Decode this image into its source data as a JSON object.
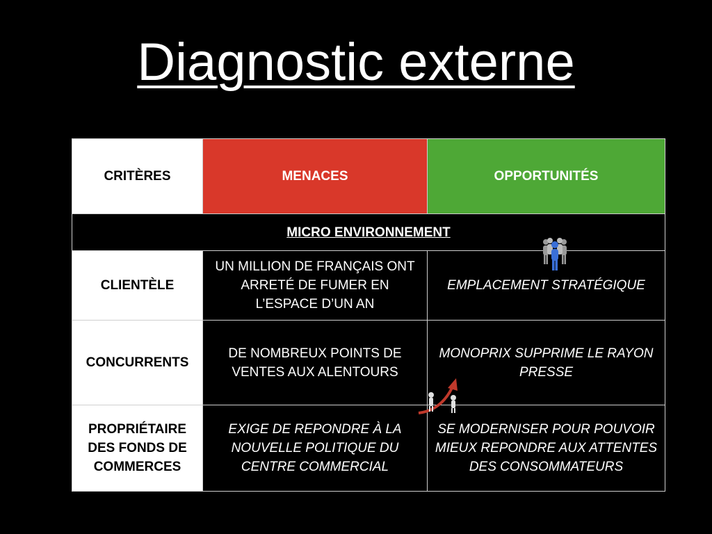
{
  "title": "Diagnostic externe",
  "table": {
    "headers": {
      "criteria": "CRITÈRES",
      "threats": "MENACES",
      "opportunities": "OPPORTUNITÉS"
    },
    "section": "MICRO ENVIRONNEMENT",
    "rows": [
      {
        "criterion": "CLIENTÈLE",
        "threat": "UN MILLION DE FRANÇAIS ONT ARRETÉ DE FUMER EN L’ESPACE D’UN AN",
        "opportunity": "EMPLACEMENT STRATÉGIQUE"
      },
      {
        "criterion": "CONCURRENTS",
        "threat": "DE NOMBREUX POINTS DE VENTES AUX ALENTOURS",
        "opportunity": "MONOPRIX SUPPRIME LE RAYON PRESSE"
      },
      {
        "criterion": "PROPRIÉTAIRE DES FONDS DE COMMERCES",
        "threat": "EXIGE DE REPONDRE À LA NOUVELLE POLITIQUE DU CENTRE COMMERCIAL",
        "opportunity": "SE MODERNISER POUR POUVOIR MIEUX REPONDRE AUX ATTENTES DES CONSOMMATEURS"
      }
    ]
  },
  "icons": {
    "people": "people-group-icon",
    "growth": "growth-arrow-icon"
  },
  "colors": {
    "threats": "#d9382a",
    "opportunities": "#4ea836",
    "background": "#000000"
  }
}
